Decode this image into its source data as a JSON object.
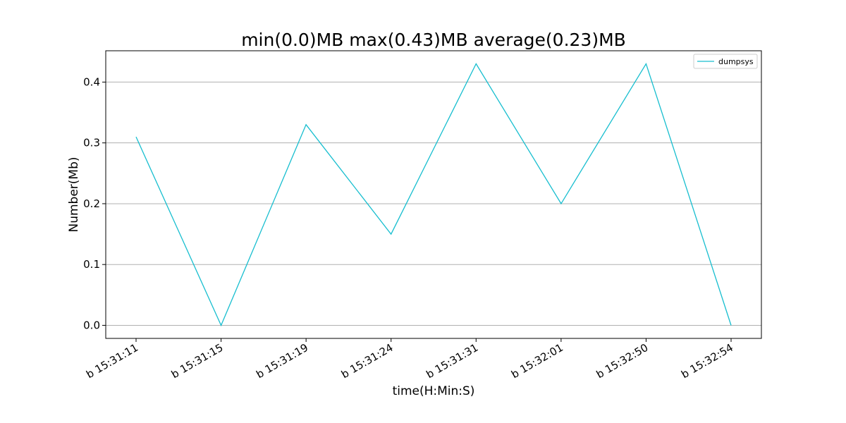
{
  "chart_data": {
    "type": "line",
    "title": "min(0.0)MB max(0.43)MB average(0.23)MB",
    "xlabel": "time(H:Min:S)",
    "ylabel": "Number(Mb)",
    "categories": [
      "b 15:31:11",
      "b 15:31:15",
      "b 15:31:19",
      "b 15:31:24",
      "b 15:31:31",
      "b 15:32:01",
      "b 15:32:50",
      "b 15:32:54"
    ],
    "series": [
      {
        "name": "dumpsys",
        "color": "#17becf",
        "values": [
          0.31,
          0.0,
          0.33,
          0.15,
          0.43,
          0.2,
          0.43,
          0.0
        ]
      }
    ],
    "ylim": [
      -0.0215,
      0.4515
    ],
    "yticks": [
      "0.0",
      "0.1",
      "0.2",
      "0.3",
      "0.4"
    ],
    "ytick_values": [
      0.0,
      0.1,
      0.2,
      0.3,
      0.4
    ],
    "grid": "horizontal",
    "legend": "top-right"
  }
}
